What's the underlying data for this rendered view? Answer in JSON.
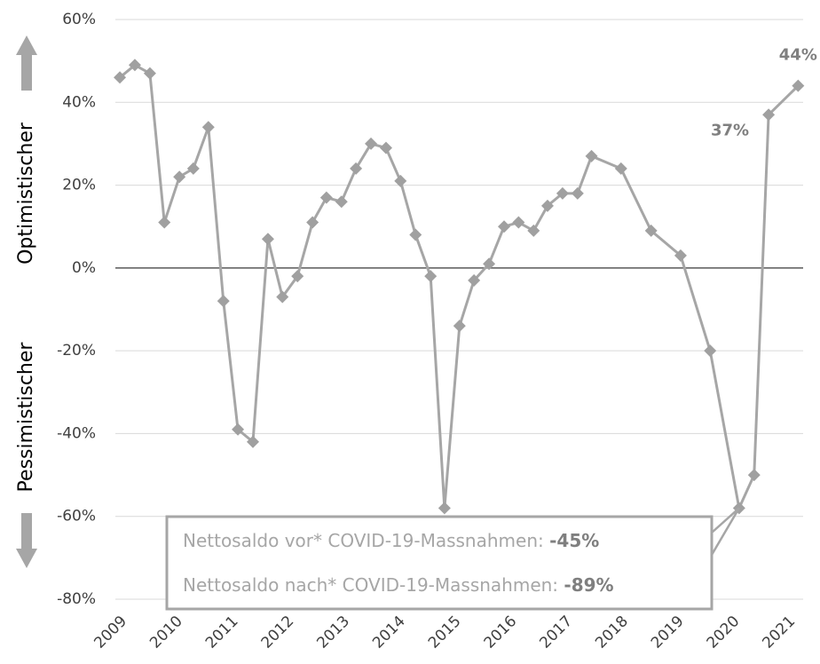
{
  "chart_data": {
    "type": "line",
    "y_label_top": "Optimistischer",
    "y_label_bottom": "Pessimistischer",
    "x": [
      2008.92,
      2009.19,
      2009.46,
      2009.72,
      2009.99,
      2010.24,
      2010.51,
      2010.78,
      2011.04,
      2011.31,
      2011.58,
      2011.84,
      2012.11,
      2012.38,
      2012.63,
      2012.9,
      2013.16,
      2013.43,
      2013.7,
      2013.96,
      2014.23,
      2014.5,
      2014.75,
      2015.02,
      2015.28,
      2015.55,
      2015.82,
      2016.08,
      2016.35,
      2016.6,
      2016.87,
      2017.14,
      2017.39,
      2017.92,
      2018.46,
      2018.99,
      2019.52,
      2020.04,
      2020.31,
      2020.57,
      2021.1
    ],
    "series": [
      {
        "color": "#a6a6a6",
        "values": [
          46,
          49,
          47,
          11,
          22,
          24,
          34,
          -8,
          -39,
          -42,
          7,
          -7,
          -2,
          11,
          17,
          16,
          24,
          30,
          29,
          21,
          8,
          -2,
          -58,
          -14,
          -3,
          1,
          10,
          11,
          9,
          15,
          18,
          18,
          27,
          24,
          9,
          3,
          -20,
          -58,
          -50,
          37,
          44
        ],
        "value_labels": [
          null,
          null,
          null,
          null,
          null,
          null,
          null,
          null,
          null,
          null,
          null,
          null,
          null,
          null,
          null,
          null,
          null,
          null,
          null,
          null,
          null,
          null,
          null,
          null,
          null,
          null,
          null,
          null,
          null,
          null,
          null,
          null,
          null,
          null,
          null,
          null,
          null,
          null,
          null,
          "37%",
          "44%"
        ]
      }
    ],
    "xlim": [
      2008.84,
      2021.19
    ],
    "xticks": [
      2009,
      2010,
      2011,
      2012,
      2013,
      2014,
      2015,
      2016,
      2017,
      2018,
      2019,
      2020,
      2021
    ],
    "ylim": [
      -80,
      60
    ],
    "yticks": [
      {
        "value": -80,
        "label": "-80%"
      },
      {
        "value": -60,
        "label": "-60%"
      },
      {
        "value": -40,
        "label": "-40%"
      },
      {
        "value": -20,
        "label": "-20%"
      },
      {
        "value": 0,
        "label": "0%"
      },
      {
        "value": 20,
        "label": "20%"
      },
      {
        "value": 40,
        "label": "40%"
      },
      {
        "value": 60,
        "label": "60%"
      }
    ],
    "grid": true,
    "annotations": [
      {
        "text": "Nettosaldo vor* COVID-19-Massnahmen:",
        "value": "-45%"
      },
      {
        "text": "Nettosaldo nach* COVID-19-Massnahmen:",
        "value": "-89%"
      }
    ]
  }
}
